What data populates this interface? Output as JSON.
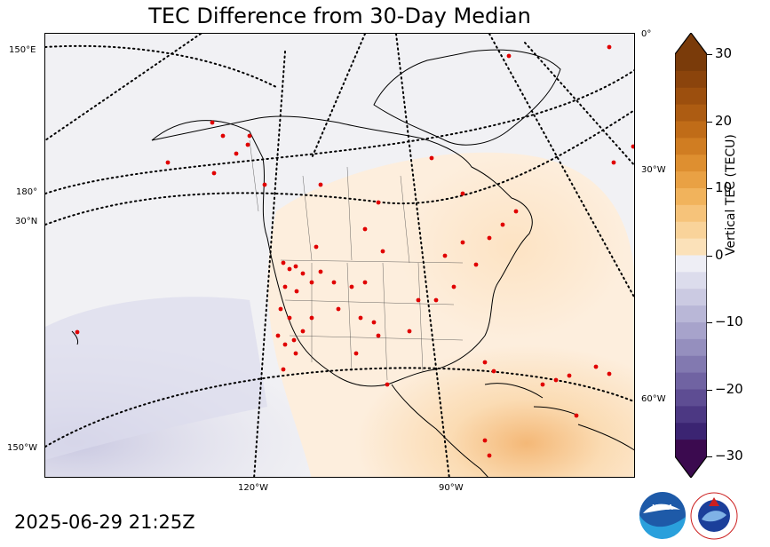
{
  "title": "TEC Difference from 30-Day Median",
  "timestamp": "2025-06-29 21:25Z",
  "colorbar": {
    "label": "Vertical TEC (TECU)",
    "ticks": [
      "30",
      "20",
      "10",
      "0",
      "−10",
      "−20",
      "−30"
    ],
    "range": [
      -30,
      30
    ],
    "positive_color": "#7a3b0a",
    "negative_color": "#3b0a4f"
  },
  "graticule_labels": {
    "left": [
      "150°E",
      "180°",
      "30°N",
      "150°W"
    ],
    "right": [
      "0°",
      "30°W",
      "60°W"
    ],
    "bottom": [
      "120°W",
      "90°W"
    ]
  },
  "logos": {
    "noaa": "NOAA",
    "nws": "NATIONAL WEATHER SERVICE"
  },
  "icons": {
    "noaa_logo": "noaa-logo",
    "nws_logo": "nws-logo"
  }
}
